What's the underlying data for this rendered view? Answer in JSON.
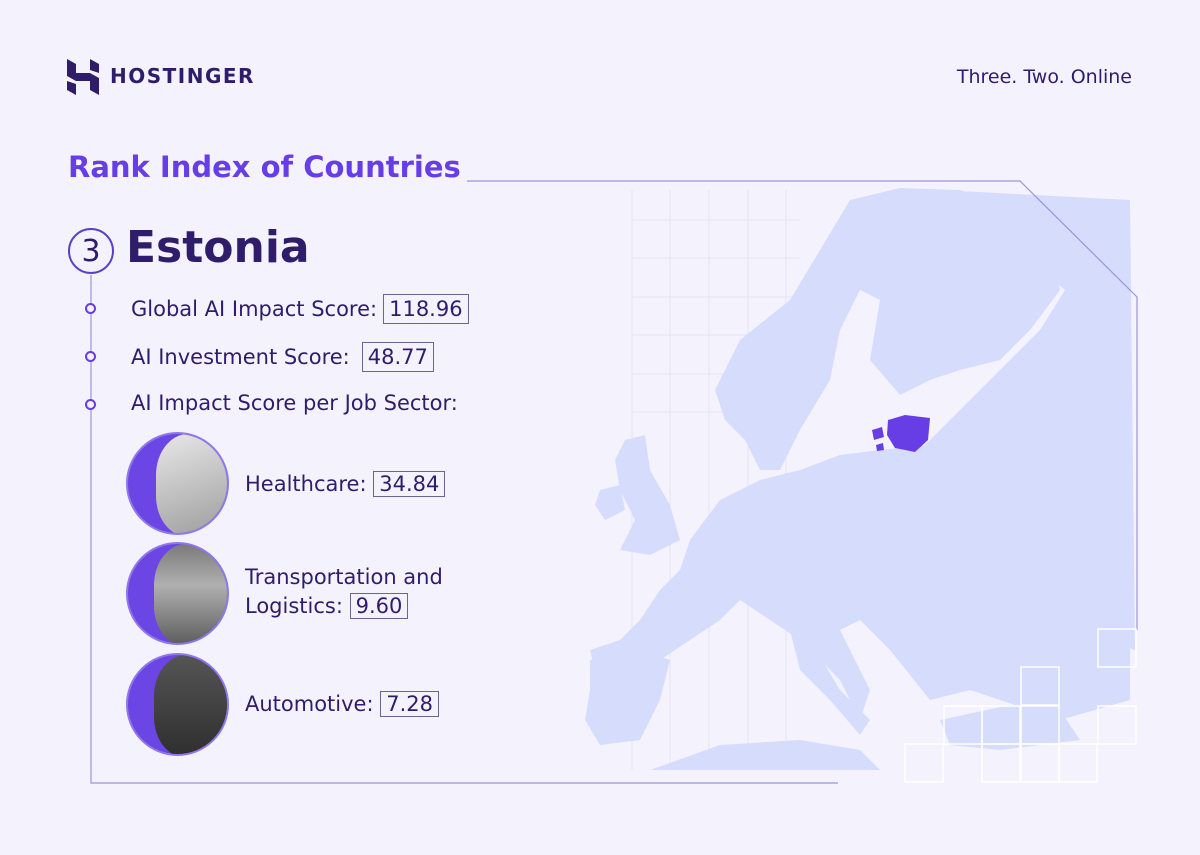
{
  "brand": {
    "name": "HOSTINGER",
    "tagline": "Three. Two. Online"
  },
  "title": "Rank Index of Countries",
  "rank": "3",
  "country": "Estonia",
  "metrics": [
    {
      "label": "Global AI Impact Score:",
      "value": "118.96"
    },
    {
      "label": "AI Investment Score:",
      "value": "48.77"
    },
    {
      "label": "AI Impact Score per Job Sector:"
    }
  ],
  "sectors": [
    {
      "label": "Healthcare:",
      "value": "34.84",
      "icon": "stethoscope-photo"
    },
    {
      "label_line1": "Transportation and",
      "label_line2": "Logistics:",
      "value": "9.60",
      "icon": "boxes-photo"
    },
    {
      "label": "Automotive:",
      "value": "7.28",
      "icon": "wrench-photo"
    }
  ],
  "colors": {
    "accent": "#673de6",
    "text": "#2f1c6a",
    "map": "#d6dcfb",
    "highlight": "#673de6",
    "background": "#f4f3fd"
  }
}
